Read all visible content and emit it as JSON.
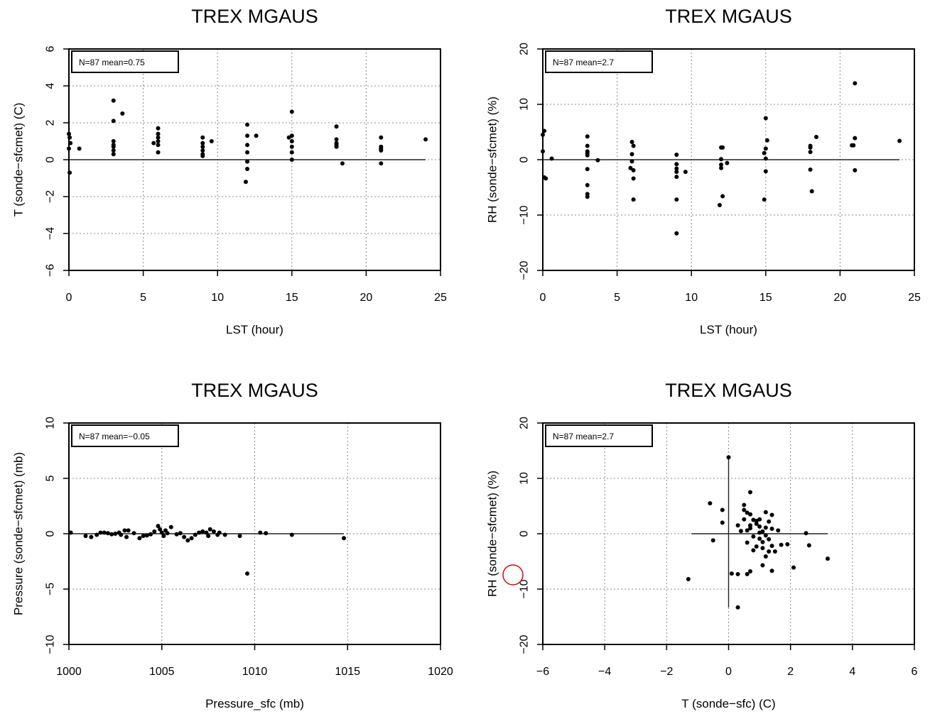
{
  "chart_data": [
    {
      "type": "scatter",
      "title": "TREX MGAUS",
      "xlabel": "LST (hour)",
      "ylabel": "T (sonde−sfcmet) (C)",
      "xlim": [
        0,
        25
      ],
      "ylim": [
        -6,
        6
      ],
      "xticks": [
        0,
        5,
        10,
        15,
        20,
        25
      ],
      "yticks": [
        -6,
        -4,
        -2,
        0,
        2,
        4,
        6
      ],
      "xtick_labels": [
        "0",
        "5",
        "10",
        "15",
        "20",
        "25"
      ],
      "ytick_labels": [
        "−6",
        "−4",
        "−2",
        "0",
        "2",
        "4",
        "6"
      ],
      "legend": "N=87 mean=0.75",
      "grid": true,
      "ref_lines": [
        {
          "x1": 0,
          "y1": 0,
          "x2": 24,
          "y2": 0
        }
      ],
      "points": [
        [
          0,
          1.4
        ],
        [
          0.05,
          1.2
        ],
        [
          0.1,
          0.9
        ],
        [
          0,
          0.6
        ],
        [
          0.05,
          -0.7
        ],
        [
          0.7,
          0.6
        ],
        [
          3,
          3.2
        ],
        [
          3,
          2.1
        ],
        [
          3,
          1.0
        ],
        [
          3,
          0.8
        ],
        [
          3,
          0.7
        ],
        [
          3,
          0.5
        ],
        [
          3,
          0.3
        ],
        [
          3.6,
          2.5
        ],
        [
          6,
          1.7
        ],
        [
          6,
          1.4
        ],
        [
          6,
          1.2
        ],
        [
          6,
          1.0
        ],
        [
          6,
          0.8
        ],
        [
          6,
          0.4
        ],
        [
          5.7,
          0.9
        ],
        [
          9,
          1.2
        ],
        [
          9,
          0.9
        ],
        [
          9,
          0.7
        ],
        [
          9,
          0.5
        ],
        [
          9,
          0.3
        ],
        [
          9,
          0.2
        ],
        [
          9.6,
          1.0
        ],
        [
          12,
          1.9
        ],
        [
          12,
          1.3
        ],
        [
          12,
          0.8
        ],
        [
          12,
          0.4
        ],
        [
          12,
          -0.1
        ],
        [
          12,
          -0.5
        ],
        [
          11.9,
          -1.2
        ],
        [
          12.6,
          1.3
        ],
        [
          15,
          2.6
        ],
        [
          15,
          1.3
        ],
        [
          15,
          1.0
        ],
        [
          15,
          0.7
        ],
        [
          15,
          0.4
        ],
        [
          14.8,
          1.2
        ],
        [
          15,
          0
        ],
        [
          18,
          1.8
        ],
        [
          18,
          1.1
        ],
        [
          18,
          0.9
        ],
        [
          18,
          0.8
        ],
        [
          18,
          0.7
        ],
        [
          18.4,
          -0.2
        ],
        [
          21,
          1.2
        ],
        [
          21,
          0.7
        ],
        [
          21,
          0.6
        ],
        [
          21,
          0.5
        ],
        [
          21,
          -0.2
        ],
        [
          24,
          1.1
        ]
      ]
    },
    {
      "type": "scatter",
      "title": "TREX MGAUS",
      "xlabel": "LST (hour)",
      "ylabel": "RH (sonde−sfcmet) (%)",
      "xlim": [
        0,
        25
      ],
      "ylim": [
        -20,
        20
      ],
      "xticks": [
        0,
        5,
        10,
        15,
        20,
        25
      ],
      "yticks": [
        -20,
        -10,
        0,
        10,
        20
      ],
      "xtick_labels": [
        "0",
        "5",
        "10",
        "15",
        "20",
        "25"
      ],
      "ytick_labels": [
        "−20",
        "−10",
        "0",
        "10",
        "20"
      ],
      "legend": "N=87 mean=2.7",
      "grid": true,
      "ref_lines": [
        {
          "x1": 0,
          "y1": 0,
          "x2": 24,
          "y2": 0
        }
      ],
      "points": [
        [
          0.1,
          5.2
        ],
        [
          0,
          4.5
        ],
        [
          0,
          1.5
        ],
        [
          0.1,
          -3.2
        ],
        [
          0.2,
          -3.4
        ],
        [
          0.6,
          0.2
        ],
        [
          3,
          4.2
        ],
        [
          3,
          2.5
        ],
        [
          3,
          1.5
        ],
        [
          3,
          1.2
        ],
        [
          3,
          0.8
        ],
        [
          3,
          -1.7
        ],
        [
          3,
          -4.6
        ],
        [
          3,
          -6.2
        ],
        [
          3,
          -6.7
        ],
        [
          3.7,
          -0.1
        ],
        [
          6,
          3.2
        ],
        [
          6.1,
          2.5
        ],
        [
          6,
          1.0
        ],
        [
          6,
          -0.3
        ],
        [
          5.9,
          -1.5
        ],
        [
          6.1,
          -1.9
        ],
        [
          6.1,
          -3.4
        ],
        [
          6.1,
          -7.2
        ],
        [
          9,
          0.9
        ],
        [
          9,
          -0.8
        ],
        [
          9,
          -1.6
        ],
        [
          9,
          -2.2
        ],
        [
          9,
          -3.1
        ],
        [
          9,
          -7.2
        ],
        [
          9,
          -13.3
        ],
        [
          9.6,
          -2.2
        ],
        [
          12,
          2.2
        ],
        [
          12.1,
          2.2
        ],
        [
          12,
          0.1
        ],
        [
          12,
          -0.9
        ],
        [
          12,
          -1.5
        ],
        [
          12.1,
          -6.6
        ],
        [
          11.9,
          -8.2
        ],
        [
          12.4,
          -0.6
        ],
        [
          15,
          7.5
        ],
        [
          15.1,
          3.5
        ],
        [
          15,
          2.0
        ],
        [
          14.9,
          1.2
        ],
        [
          15,
          -2.1
        ],
        [
          14.9,
          -7.2
        ],
        [
          15,
          0.2
        ],
        [
          18,
          2.5
        ],
        [
          18,
          2.2
        ],
        [
          18,
          1.4
        ],
        [
          18,
          -1.8
        ],
        [
          18.1,
          -5.7
        ],
        [
          18.4,
          4.1
        ],
        [
          21,
          13.8
        ],
        [
          21,
          3.9
        ],
        [
          20.9,
          2.6
        ],
        [
          20.8,
          2.6
        ],
        [
          21,
          -1.9
        ],
        [
          24,
          3.4
        ]
      ]
    },
    {
      "type": "scatter",
      "title": "TREX MGAUS",
      "xlabel": "Pressure_sfc (mb)",
      "ylabel": "Pressure (sonde−sfcmet) (mb)",
      "xlim": [
        1000,
        1020
      ],
      "ylim": [
        -10,
        10
      ],
      "xticks": [
        1000,
        1005,
        1010,
        1015,
        1020
      ],
      "yticks": [
        -10,
        -5,
        0,
        5,
        10
      ],
      "xtick_labels": [
        "1000",
        "1005",
        "1010",
        "1015",
        "1020"
      ],
      "ytick_labels": [
        "−10",
        "−5",
        "0",
        "5",
        "10"
      ],
      "legend": "N=87 mean=−0.05",
      "grid": true,
      "ref_lines": [
        {
          "x1": 1000,
          "y1": 0,
          "x2": 1014.8,
          "y2": 0
        }
      ],
      "points": [
        [
          1000.1,
          0.1
        ],
        [
          1000.9,
          -0.2
        ],
        [
          1001.2,
          -0.3
        ],
        [
          1001.5,
          -0.1
        ],
        [
          1001.7,
          0.1
        ],
        [
          1001.9,
          0.1
        ],
        [
          1002.1,
          0.05
        ],
        [
          1002.3,
          -0.05
        ],
        [
          1002.5,
          0
        ],
        [
          1002.7,
          0.1
        ],
        [
          1002.8,
          -0.1
        ],
        [
          1003,
          0.3
        ],
        [
          1003.1,
          -0.3
        ],
        [
          1003.2,
          0.3
        ],
        [
          1003.5,
          0.05
        ],
        [
          1003.8,
          -0.4
        ],
        [
          1004,
          -0.2
        ],
        [
          1004.2,
          -0.15
        ],
        [
          1004.4,
          -0.05
        ],
        [
          1004.6,
          0.2
        ],
        [
          1004.8,
          0.7
        ],
        [
          1004.9,
          0.4
        ],
        [
          1005,
          0.1
        ],
        [
          1005.1,
          -0.2
        ],
        [
          1005.2,
          0.3
        ],
        [
          1005.3,
          0.05
        ],
        [
          1005.5,
          0.6
        ],
        [
          1005.8,
          -0.05
        ],
        [
          1006,
          0.05
        ],
        [
          1006.2,
          -0.3
        ],
        [
          1006.4,
          -0.6
        ],
        [
          1006.6,
          -0.4
        ],
        [
          1006.8,
          -0.1
        ],
        [
          1007,
          0.1
        ],
        [
          1007.2,
          0.2
        ],
        [
          1007.4,
          0.1
        ],
        [
          1007.5,
          -0.2
        ],
        [
          1007.6,
          0.4
        ],
        [
          1007.8,
          0.2
        ],
        [
          1008,
          -0.1
        ],
        [
          1008.1,
          0.1
        ],
        [
          1008.4,
          -0.1
        ],
        [
          1009.2,
          -0.2
        ],
        [
          1009.6,
          -3.6
        ],
        [
          1010.3,
          0.1
        ],
        [
          1010.6,
          0.05
        ],
        [
          1012,
          -0.1
        ],
        [
          1014.8,
          -0.4
        ]
      ]
    },
    {
      "type": "scatter",
      "title": "TREX MGAUS",
      "xlabel": "T (sonde−sfc) (C)",
      "ylabel": "RH (sonde−sfcmet) (%)",
      "xlim": [
        -6,
        6
      ],
      "ylim": [
        -20,
        20
      ],
      "xticks": [
        -6,
        -4,
        -2,
        0,
        2,
        4,
        6
      ],
      "yticks": [
        -20,
        -10,
        0,
        10,
        20
      ],
      "xtick_labels": [
        "−6",
        "−4",
        "−2",
        "0",
        "2",
        "4",
        "6"
      ],
      "ytick_labels": [
        "−20",
        "−10",
        "0",
        "10",
        "20"
      ],
      "legend": "N=87 mean=2.7",
      "grid": true,
      "ref_lines": [
        {
          "x1": -1.2,
          "y1": 0,
          "x2": 3.2,
          "y2": 0
        },
        {
          "x1": 0,
          "y1": -13.3,
          "x2": 0,
          "y2": 13.8
        }
      ],
      "points": [
        [
          -1.3,
          -8.2
        ],
        [
          -0.6,
          5.5
        ],
        [
          -0.5,
          -1.2
        ],
        [
          -0.2,
          4.3
        ],
        [
          -0.2,
          2
        ],
        [
          0,
          13.8
        ],
        [
          0.1,
          -7.2
        ],
        [
          0.3,
          -7.3
        ],
        [
          0.3,
          1.5
        ],
        [
          0.3,
          -13.3
        ],
        [
          0.5,
          5.2
        ],
        [
          0.5,
          4.3
        ],
        [
          0.5,
          2.6
        ],
        [
          0.6,
          0.6
        ],
        [
          0.6,
          -1.6
        ],
        [
          0.6,
          -7.3
        ],
        [
          0.7,
          7.5
        ],
        [
          0.7,
          -6.8
        ],
        [
          0.7,
          3.5
        ],
        [
          0.7,
          1.5
        ],
        [
          0.7,
          1.0
        ],
        [
          0.8,
          -0.5
        ],
        [
          0.8,
          2.5
        ],
        [
          0.9,
          -2.3
        ],
        [
          0.9,
          2.3
        ],
        [
          0.9,
          1.8
        ],
        [
          1.0,
          0.2
        ],
        [
          1.0,
          1.3
        ],
        [
          1.0,
          -0.9
        ],
        [
          1.0,
          2.6
        ],
        [
          1.1,
          -1.5
        ],
        [
          1.1,
          0.4
        ],
        [
          1.1,
          -2.6
        ],
        [
          1.1,
          -5.7
        ],
        [
          1.2,
          3.9
        ],
        [
          1.2,
          -0.3
        ],
        [
          1.2,
          1.1
        ],
        [
          1.3,
          2.2
        ],
        [
          1.3,
          -1.0
        ],
        [
          1.3,
          -3.2
        ],
        [
          1.4,
          3.4
        ],
        [
          1.4,
          -6.7
        ],
        [
          1.4,
          -2.2
        ],
        [
          1.4,
          0.9
        ],
        [
          1.5,
          -3.2
        ],
        [
          1.6,
          0.6
        ],
        [
          1.7,
          -2.0
        ],
        [
          1.9,
          -1.9
        ],
        [
          2.1,
          -6.1
        ],
        [
          2.5,
          0.1
        ],
        [
          2.6,
          -2.1
        ],
        [
          3.2,
          -4.5
        ],
        [
          0.4,
          0.5
        ],
        [
          0.8,
          -3.0
        ],
        [
          1.2,
          -4.1
        ],
        [
          0.6,
          3.8
        ]
      ]
    }
  ]
}
